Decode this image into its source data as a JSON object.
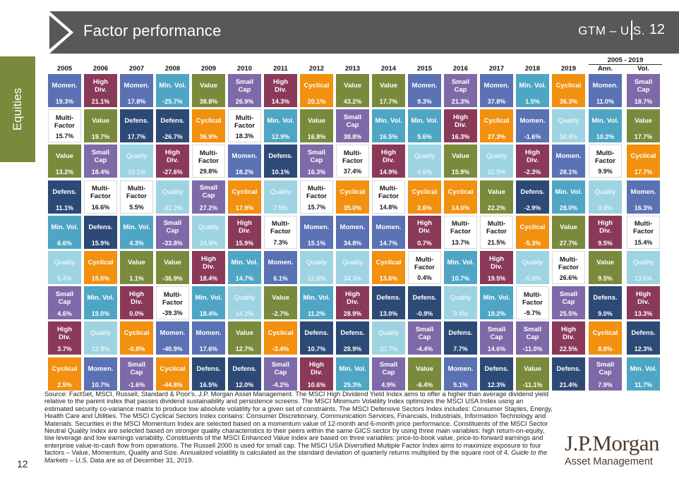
{
  "header": {
    "title": "Factor performance",
    "gtm": "GTM – U.S.",
    "page": "12"
  },
  "sidebar": {
    "label": "Equities"
  },
  "range_label": "2005 - 2019",
  "colors": {
    "Momen.": "#5a72b4",
    "Value": "#7a8a3c",
    "Small Cap": "#7e6aa8",
    "High Div.": "#8a3a58",
    "Cyclical": "#f2900f",
    "Multi-Factor": "#ffffff",
    "Defens.": "#2d4a76",
    "Min. Vol.": "#4fa6c4",
    "Quality": "#9ed4e2"
  },
  "text_colors": {
    "Multi-Factor": "#1a1a1a",
    "Quality": "#ffffff"
  },
  "chart_data": {
    "type": "table",
    "columns": [
      "2005",
      "2006",
      "2007",
      "2008",
      "2009",
      "2010",
      "2011",
      "2012",
      "2013",
      "2014",
      "2015",
      "2016",
      "2017",
      "2018",
      "2019",
      "Ann.",
      "Vol."
    ],
    "rows": [
      [
        [
          "Momen.",
          "19.3%"
        ],
        [
          "High Div.",
          "21.1%"
        ],
        [
          "Momen.",
          "17.8%"
        ],
        [
          "Min. Vol.",
          "-25.7%"
        ],
        [
          "Value",
          "38.8%"
        ],
        [
          "Small Cap",
          "26.9%"
        ],
        [
          "High Div.",
          "14.3%"
        ],
        [
          "Cyclical",
          "20.1%"
        ],
        [
          "Value",
          "43.2%"
        ],
        [
          "Value",
          "17.7%"
        ],
        [
          "Momen.",
          "9.3%"
        ],
        [
          "Small Cap",
          "21.3%"
        ],
        [
          "Momen.",
          "37.8%"
        ],
        [
          "Min. Vol.",
          "1.5%"
        ],
        [
          "Cyclical",
          "36.3%"
        ],
        [
          "Momen.",
          "11.0%"
        ],
        [
          "Small Cap",
          "18.7%"
        ]
      ],
      [
        [
          "Multi-Factor",
          "15.7%"
        ],
        [
          "Value",
          "19.7%"
        ],
        [
          "Defens.",
          "17.7%"
        ],
        [
          "Defens.",
          "-26.7%"
        ],
        [
          "Cyclical",
          "36.9%"
        ],
        [
          "Multi-Factor",
          "18.3%"
        ],
        [
          "Min. Vol.",
          "12.9%"
        ],
        [
          "Value",
          "16.8%"
        ],
        [
          "Small Cap",
          "38.8%"
        ],
        [
          "Min. Vol.",
          "16.5%"
        ],
        [
          "Min. Vol.",
          "5.6%"
        ],
        [
          "High Div.",
          "16.3%"
        ],
        [
          "Cyclical",
          "27.3%"
        ],
        [
          "Momen.",
          "-1.6%"
        ],
        [
          "Quality",
          "34.4%"
        ],
        [
          "Min. Vol.",
          "10.2%"
        ],
        [
          "Value",
          "17.7%"
        ]
      ],
      [
        [
          "Value",
          "13.2%"
        ],
        [
          "Small Cap",
          "18.4%"
        ],
        [
          "Quality",
          "10.1%"
        ],
        [
          "High Div.",
          "-27.6%"
        ],
        [
          "Multi-Factor",
          "29.8%"
        ],
        [
          "Momen.",
          "18.2%"
        ],
        [
          "Defens.",
          "10.1%"
        ],
        [
          "Small Cap",
          "16.3%"
        ],
        [
          "Multi-Factor",
          "37.4%"
        ],
        [
          "High Div.",
          "14.9%"
        ],
        [
          "Quality",
          "4.6%"
        ],
        [
          "Value",
          "15.9%"
        ],
        [
          "Quality",
          "22.5%"
        ],
        [
          "High Div.",
          "-2.3%"
        ],
        [
          "Momen.",
          "28.1%"
        ],
        [
          "Multi-Factor",
          "9.9%"
        ],
        [
          "Cyclical",
          "17.7%"
        ]
      ],
      [
        [
          "Defens.",
          "11.1%"
        ],
        [
          "Multi-Factor",
          "16.6%"
        ],
        [
          "Multi-Factor",
          "5.5%"
        ],
        [
          "Quality",
          "-31.2%"
        ],
        [
          "Small Cap",
          "27.2%"
        ],
        [
          "Cyclical",
          "17.9%"
        ],
        [
          "Quality",
          "7.5%"
        ],
        [
          "Multi-Factor",
          "15.7%"
        ],
        [
          "Cyclical",
          "35.0%"
        ],
        [
          "Multi-Factor",
          "14.8%"
        ],
        [
          "Cyclical",
          "2.6%"
        ],
        [
          "Cyclical",
          "14.0%"
        ],
        [
          "Value",
          "22.2%"
        ],
        [
          "Defens.",
          "-2.9%"
        ],
        [
          "Min. Vol.",
          "28.0%"
        ],
        [
          "Quality",
          "9.9%"
        ],
        [
          "Momen.",
          "16.3%"
        ]
      ],
      [
        [
          "Min. Vol.",
          "6.6%"
        ],
        [
          "Defens.",
          "15.9%"
        ],
        [
          "Min. Vol.",
          "4.3%"
        ],
        [
          "Small Cap",
          "-33.8%"
        ],
        [
          "Quality",
          "24.9%"
        ],
        [
          "High Div.",
          "15.9%"
        ],
        [
          "Multi-Factor",
          "7.3%"
        ],
        [
          "Momen.",
          "15.1%"
        ],
        [
          "Momen.",
          "34.8%"
        ],
        [
          "Momen.",
          "14.7%"
        ],
        [
          "High Div.",
          "0.7%"
        ],
        [
          "Multi-Factor",
          "13.7%"
        ],
        [
          "Multi-Factor",
          "21.5%"
        ],
        [
          "Cyclical",
          "-5.3%"
        ],
        [
          "Value",
          "27.7%"
        ],
        [
          "High Div.",
          "9.5%"
        ],
        [
          "Multi-Factor",
          "15.4%"
        ]
      ],
      [
        [
          "Quality",
          "5.4%"
        ],
        [
          "Cyclical",
          "15.0%"
        ],
        [
          "Value",
          "1.1%"
        ],
        [
          "Value",
          "-36.9%"
        ],
        [
          "High Div.",
          "18.4%"
        ],
        [
          "Min. Vol.",
          "14.7%"
        ],
        [
          "Momen.",
          "6.1%"
        ],
        [
          "Quality",
          "12.8%"
        ],
        [
          "Quality",
          "34.3%"
        ],
        [
          "Cyclical",
          "13.6%"
        ],
        [
          "Multi-Factor",
          "0.4%"
        ],
        [
          "Min. Vol.",
          "10.7%"
        ],
        [
          "High Div.",
          "19.5%"
        ],
        [
          "Quality",
          "-5.6%"
        ],
        [
          "Multi-Factor",
          "26.6%"
        ],
        [
          "Value",
          "9.5%"
        ],
        [
          "Quality",
          "13.6%"
        ]
      ],
      [
        [
          "Small Cap",
          "4.6%"
        ],
        [
          "Min. Vol.",
          "15.0%"
        ],
        [
          "High Div.",
          "0.0%"
        ],
        [
          "Multi-Factor",
          "-39.3%"
        ],
        [
          "Min. Vol.",
          "18.4%"
        ],
        [
          "Quality",
          "14.2%"
        ],
        [
          "Value",
          "-2.7%"
        ],
        [
          "Min. Vol.",
          "11.2%"
        ],
        [
          "High Div.",
          "28.9%"
        ],
        [
          "Defens.",
          "13.0%"
        ],
        [
          "Defens.",
          "-0.9%"
        ],
        [
          "Quality",
          "9.4%"
        ],
        [
          "Min. Vol.",
          "19.2%"
        ],
        [
          "Multi-Factor",
          "-9.7%"
        ],
        [
          "Small Cap",
          "25.5%"
        ],
        [
          "Defens.",
          "9.0%"
        ],
        [
          "High Div.",
          "13.3%"
        ]
      ],
      [
        [
          "High Div.",
          "3.7%"
        ],
        [
          "Quality",
          "12.8%"
        ],
        [
          "Cyclical",
          "-0.8%"
        ],
        [
          "Momen.",
          "-40.9%"
        ],
        [
          "Momen.",
          "17.6%"
        ],
        [
          "Value",
          "12.7%"
        ],
        [
          "Cyclical",
          "-3.4%"
        ],
        [
          "Defens.",
          "10.7%"
        ],
        [
          "Defens.",
          "28.9%"
        ],
        [
          "Quality",
          "10.7%"
        ],
        [
          "Small Cap",
          "-4.4%"
        ],
        [
          "Defens.",
          "7.7%"
        ],
        [
          "Small Cap",
          "14.6%"
        ],
        [
          "Small Cap",
          "-11.0%"
        ],
        [
          "High Div.",
          "22.5%"
        ],
        [
          "Cyclical",
          "8.8%"
        ],
        [
          "Defens.",
          "12.3%"
        ]
      ],
      [
        [
          "Cyclical",
          "2.5%"
        ],
        [
          "Momen.",
          "10.7%"
        ],
        [
          "Small Cap",
          "-1.6%"
        ],
        [
          "Cyclical",
          "-44.8%"
        ],
        [
          "Defens.",
          "16.5%"
        ],
        [
          "Defens.",
          "12.0%"
        ],
        [
          "Small Cap",
          "-4.2%"
        ],
        [
          "High Div.",
          "10.6%"
        ],
        [
          "Min. Vol.",
          "25.3%"
        ],
        [
          "Small Cap",
          "4.9%"
        ],
        [
          "Value",
          "-6.4%"
        ],
        [
          "Momen.",
          "5.1%"
        ],
        [
          "Defens.",
          "12.3%"
        ],
        [
          "Value",
          "-11.1%"
        ],
        [
          "Defens.",
          "21.4%"
        ],
        [
          "Small Cap",
          "7.9%"
        ],
        [
          "Min. Vol.",
          "11.7%"
        ]
      ]
    ]
  },
  "footnote": {
    "text": "Source: FactSet, MSCI, Russell, Standard & Poor's, J.P. Morgan Asset Management. The MSCI High Dividend Yield Index aims to offer a higher than average dividend yield relative to the parent index that passes dividend sustainability and persistence screens. The MSCI Minimum Volatility Index optimizes the MSCI USA Index using an estimated security co-variance matrix to produce low absolute volatility for a given set of constraints. The MSCI Defensive Sectors Index includes: Consumer Staples, Energy, Health Care and Utilities. The MSCI Cyclical Sectors Index contains: Consumer Discretionary, Communication Services, Financials, Industrials, Information Technology and Materials. Securities in the MSCI Momentum Index are selected based on a momentum value of 12-month and 6-month price performance. Constituents of the MSCI Sector Neutral Quality Index are selected based on stronger quality characteristics to their peers within the same GICS sector by using three main variables: high return-on-equity, low leverage and low earnings variability. Constituents of the MSCI Enhanced Value index are based on three variables: price-to-book value, price-to-forward earnings and enterprise value-to-cash flow from operations. The Russell 2000 is used for small cap. The MSCI USA Diversified Multiple Factor Index aims to maximize exposure to four factors – Value, Momentum, Quality and Size. Annualized volatility is calculated as the standard deviation of quarterly returns multiplied by the square root of 4.",
    "guide": "Guide to the Markets – U.S.",
    "tail": "Data are as of December 31, 2019."
  },
  "page_number": "12",
  "logo": {
    "name": "J.P.Morgan",
    "sub": "Asset Management"
  }
}
